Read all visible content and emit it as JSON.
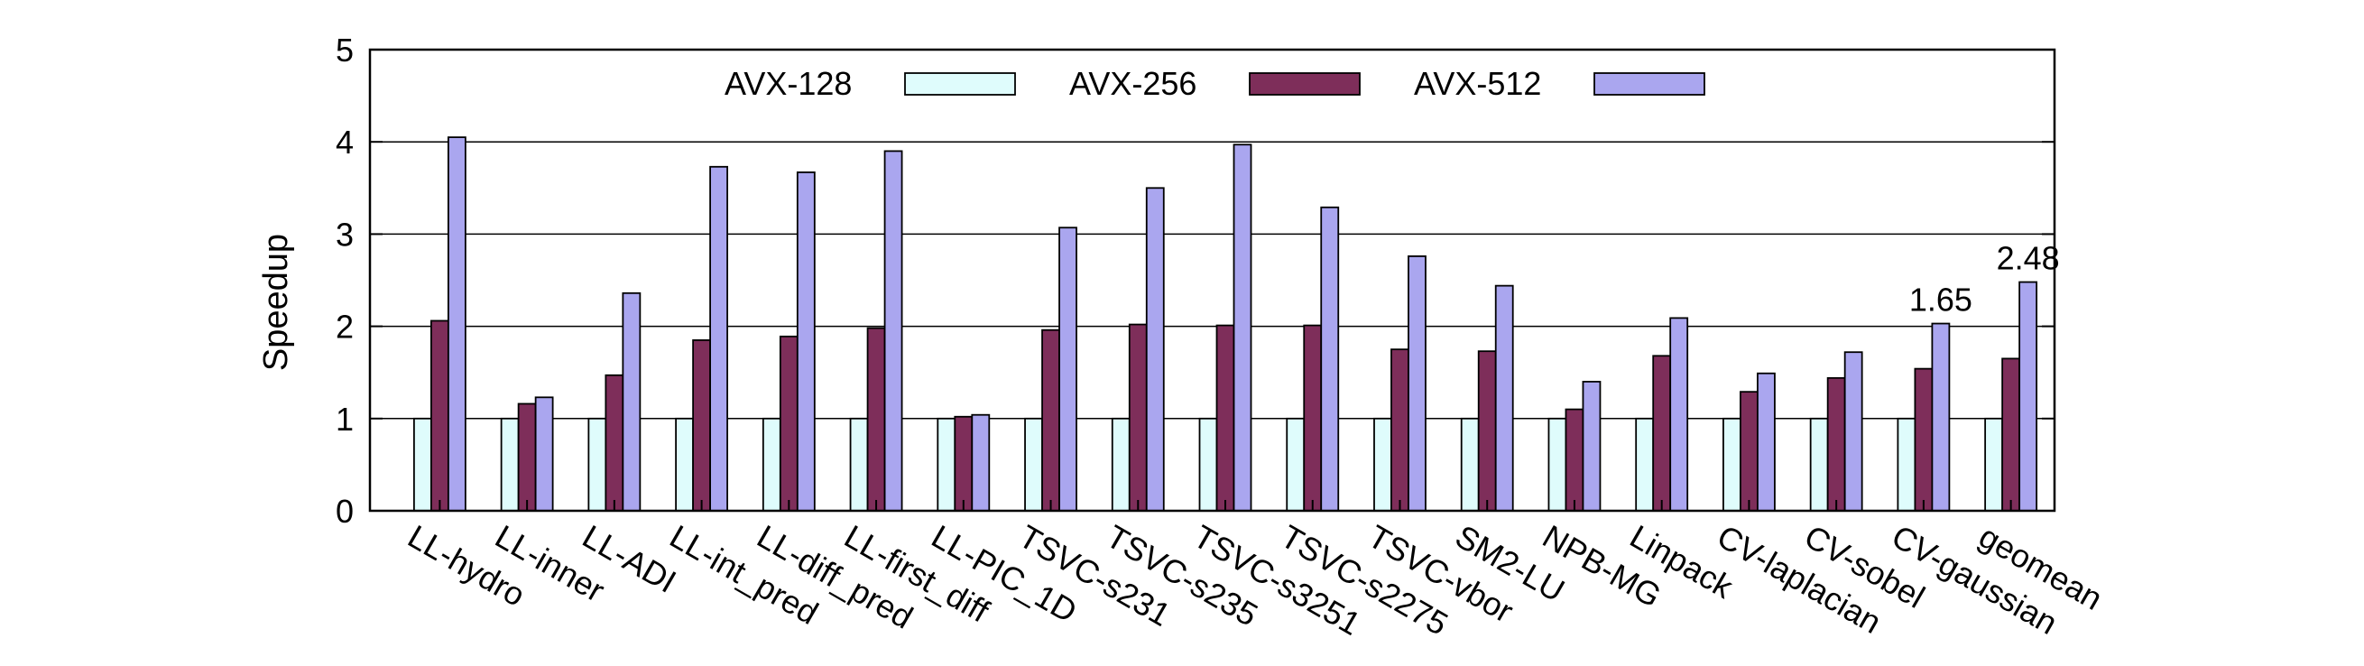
{
  "chart_data": {
    "type": "bar",
    "ylabel": "Speedup",
    "xlabel": "",
    "ylim": [
      0,
      5
    ],
    "yticks": [
      "0",
      "1",
      "2",
      "3",
      "4",
      "5"
    ],
    "grid": "horizontal",
    "legend_position": "top-center",
    "categories": [
      "LL-hydro",
      "LL-inner",
      "LL-ADI",
      "LL-int_pred",
      "LL-diff_pred",
      "LL-first_diff",
      "LL-PIC_1D",
      "TSVC-s231",
      "TSVC-s235",
      "TSVC-s3251",
      "TSVC-s2275",
      "TSVC-vbor",
      "SM2-LU",
      "NPB-MG",
      "Linpack",
      "CV-laplacian",
      "CV-sobel",
      "CV-gaussian",
      "geomean"
    ],
    "series": [
      {
        "name": "AVX-128",
        "color": "#dffcfc",
        "values": [
          1,
          1,
          1,
          1,
          1,
          1,
          1,
          1,
          1,
          1,
          1,
          1,
          1,
          1,
          1,
          1,
          1,
          1,
          1
        ]
      },
      {
        "name": "AVX-256",
        "color": "#7e2e5a",
        "values": [
          2.06,
          1.16,
          1.47,
          1.85,
          1.89,
          1.98,
          1.02,
          1.96,
          2.02,
          2.01,
          2.01,
          1.75,
          1.73,
          1.1,
          1.68,
          1.29,
          1.44,
          1.54,
          1.65
        ]
      },
      {
        "name": "AVX-512",
        "color": "#aaa6ef",
        "values": [
          4.05,
          1.23,
          2.36,
          3.73,
          3.67,
          3.9,
          1.04,
          3.07,
          3.5,
          3.97,
          3.29,
          2.76,
          2.44,
          1.4,
          2.09,
          1.49,
          1.72,
          2.03,
          2.48
        ]
      }
    ],
    "annotations": [
      {
        "text": "1.65",
        "category": "CV-gaussian",
        "series": "AVX-512"
      },
      {
        "text": "2.48",
        "category": "geomean",
        "series": "AVX-512"
      }
    ]
  }
}
